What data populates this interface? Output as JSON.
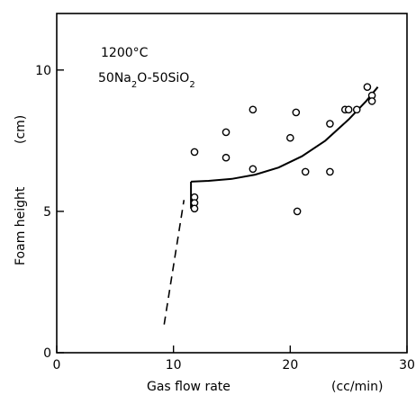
{
  "chart_data": {
    "type": "scatter",
    "xlabel": "Gas flow rate",
    "xunit": "(cc/min)",
    "ylabel": "Foam height",
    "yunit": "(cm)",
    "xlim": [
      0,
      30
    ],
    "ylim": [
      0,
      12
    ],
    "xticks": [
      0,
      10,
      20,
      30
    ],
    "yticks": [
      0,
      5,
      10
    ],
    "grid": false,
    "legend": "none",
    "annotations": {
      "temperature": "1200°C",
      "composition_parts": [
        {
          "t": "50Na",
          "sub": false
        },
        {
          "t": "2",
          "sub": true
        },
        {
          "t": "O-50SiO",
          "sub": false
        },
        {
          "t": "2",
          "sub": true
        }
      ]
    },
    "points": [
      {
        "x": 11.8,
        "y": 7.1
      },
      {
        "x": 11.8,
        "y": 5.5
      },
      {
        "x": 11.8,
        "y": 5.3
      },
      {
        "x": 11.8,
        "y": 5.1
      },
      {
        "x": 14.5,
        "y": 7.8
      },
      {
        "x": 14.5,
        "y": 6.9
      },
      {
        "x": 16.8,
        "y": 8.6
      },
      {
        "x": 16.8,
        "y": 6.5
      },
      {
        "x": 20.0,
        "y": 7.6
      },
      {
        "x": 20.5,
        "y": 8.5
      },
      {
        "x": 20.6,
        "y": 5.0
      },
      {
        "x": 21.3,
        "y": 6.4
      },
      {
        "x": 23.4,
        "y": 8.1
      },
      {
        "x": 23.4,
        "y": 6.4
      },
      {
        "x": 24.7,
        "y": 8.6
      },
      {
        "x": 25.0,
        "y": 8.6
      },
      {
        "x": 25.7,
        "y": 8.6
      },
      {
        "x": 26.6,
        "y": 9.4
      },
      {
        "x": 27.0,
        "y": 9.1
      },
      {
        "x": 27.0,
        "y": 8.9
      }
    ],
    "fit_curve": [
      {
        "x": 11.5,
        "y": 6.05
      },
      {
        "x": 13,
        "y": 6.08
      },
      {
        "x": 15,
        "y": 6.15
      },
      {
        "x": 17,
        "y": 6.3
      },
      {
        "x": 19,
        "y": 6.55
      },
      {
        "x": 21,
        "y": 6.95
      },
      {
        "x": 23,
        "y": 7.5
      },
      {
        "x": 25,
        "y": 8.25
      },
      {
        "x": 26.5,
        "y": 8.9
      },
      {
        "x": 27.5,
        "y": 9.4
      }
    ],
    "fit_vertical": [
      {
        "x": 11.5,
        "y": 5.1
      },
      {
        "x": 11.5,
        "y": 6.05
      }
    ],
    "extrapolation_dashed": [
      {
        "x": 9.2,
        "y": 1.0
      },
      {
        "x": 10.9,
        "y": 5.4
      }
    ]
  }
}
